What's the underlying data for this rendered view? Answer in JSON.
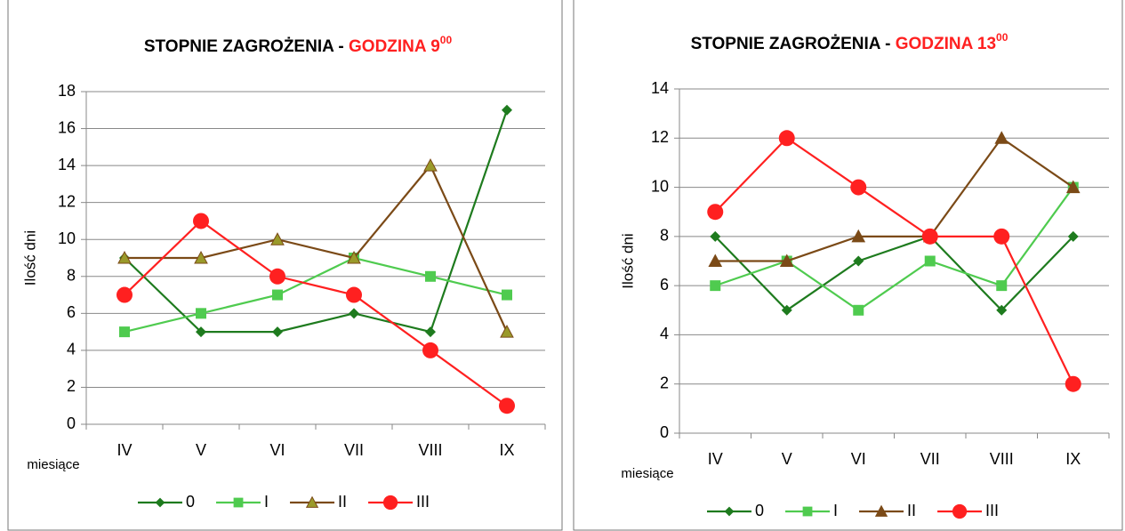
{
  "chart_data": [
    {
      "type": "line",
      "title": "STOPNIE ZAGROŻENIA -",
      "title_highlight": "GODZINA 9",
      "title_sup": "00",
      "y_label": "Ilość dni",
      "x_label": "miesiące",
      "categories": [
        "IV",
        "V",
        "VI",
        "VII",
        "VIII",
        "IX"
      ],
      "ylim": [
        0,
        18
      ],
      "yticks": [
        0,
        2,
        4,
        6,
        8,
        10,
        12,
        14,
        16,
        18
      ],
      "grid": true,
      "legend": "bottom",
      "series": [
        {
          "name": "0",
          "color": "#1e7b1e",
          "marker": "diamond",
          "marker_color": "#1e7b1e",
          "values": [
            9,
            5,
            5,
            6,
            5,
            17
          ]
        },
        {
          "name": "I",
          "color": "#4fcb4f",
          "marker": "square",
          "marker_color": "#4fcb4f",
          "values": [
            5,
            6,
            7,
            9,
            8,
            7
          ]
        },
        {
          "name": "II",
          "color": "#7b4a17",
          "marker": "triangle",
          "marker_color": "#9a9a2a",
          "values": [
            9,
            9,
            10,
            9,
            14,
            5
          ]
        },
        {
          "name": "III",
          "color": "#ff2020",
          "marker": "circle",
          "marker_color": "#ff2020",
          "values": [
            7,
            11,
            8,
            7,
            4,
            1
          ]
        }
      ]
    },
    {
      "type": "line",
      "title": "STOPNIE ZAGROŻENIA -",
      "title_highlight": "GODZINA 13",
      "title_sup": "00",
      "y_label": "Ilość dni",
      "x_label": "miesiące",
      "categories": [
        "IV",
        "V",
        "VI",
        "VII",
        "VIII",
        "IX"
      ],
      "ylim": [
        0,
        14
      ],
      "yticks": [
        0,
        2,
        4,
        6,
        8,
        10,
        12,
        14
      ],
      "grid": true,
      "legend": "bottom",
      "series": [
        {
          "name": "0",
          "color": "#1e7b1e",
          "marker": "diamond",
          "marker_color": "#1e7b1e",
          "values": [
            8,
            5,
            7,
            8,
            5,
            8
          ]
        },
        {
          "name": "I",
          "color": "#4fcb4f",
          "marker": "square",
          "marker_color": "#4fcb4f",
          "values": [
            6,
            7,
            5,
            7,
            6,
            10
          ]
        },
        {
          "name": "II",
          "color": "#7b4a17",
          "marker": "triangle",
          "marker_color": "#7b4a17",
          "values": [
            7,
            7,
            8,
            8,
            12,
            10
          ]
        },
        {
          "name": "III",
          "color": "#ff2020",
          "marker": "circle",
          "marker_color": "#ff2020",
          "values": [
            9,
            12,
            10,
            8,
            8,
            2
          ]
        }
      ]
    }
  ]
}
